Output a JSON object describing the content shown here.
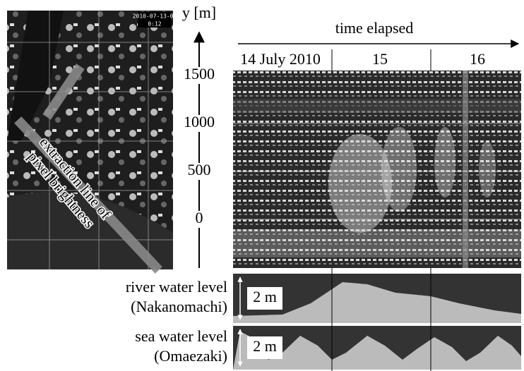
{
  "photo": {
    "timestamp": "2010-07-13-00",
    "clock": "0:12",
    "annotation": [
      "extraction line of",
      "pixel brightness"
    ]
  },
  "y_axis": {
    "label": "y [m]",
    "ticks": [
      "1500",
      "1000",
      "500",
      "0"
    ]
  },
  "time_axis": {
    "title": "time elapsed",
    "dates": [
      "14 July 2010",
      "15",
      "16"
    ]
  },
  "panels": [
    {
      "label": "river water level",
      "station": "(Nakanomachi)",
      "scale": "2 m"
    },
    {
      "label": "sea water level",
      "station": "(Omaezaki)",
      "scale": "2 m"
    }
  ]
}
